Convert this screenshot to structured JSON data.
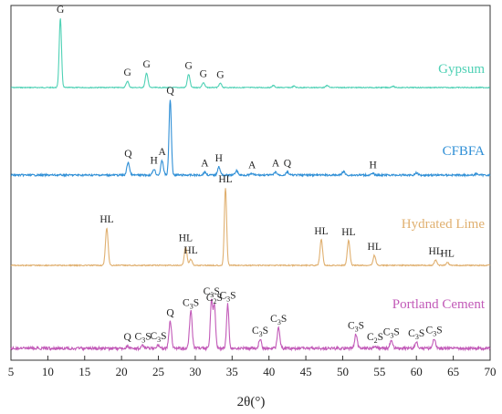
{
  "chart_data": {
    "type": "line",
    "title": "",
    "xlabel": "2θ(°)",
    "ylabel": "",
    "xlim": [
      5,
      70
    ],
    "xticks": [
      5,
      10,
      15,
      20,
      25,
      30,
      35,
      40,
      45,
      50,
      55,
      60,
      65,
      70
    ],
    "y_ticks_shown": false,
    "grid": false,
    "legend": "none; series names printed at right end of each trace",
    "series": [
      {
        "name": "Gypsum",
        "color": "#4fd1b5",
        "baseline": 0,
        "peaks": [
          {
            "x": 11.7,
            "h": 100,
            "label": "G"
          },
          {
            "x": 20.8,
            "h": 9,
            "label": "G"
          },
          {
            "x": 23.4,
            "h": 21,
            "label": "G"
          },
          {
            "x": 29.1,
            "h": 19,
            "label": "G"
          },
          {
            "x": 31.1,
            "h": 7,
            "label": "G"
          },
          {
            "x": 33.4,
            "h": 6,
            "label": "G"
          },
          {
            "x": 40.6,
            "h": 3,
            "label": ""
          },
          {
            "x": 43.4,
            "h": 2,
            "label": ""
          },
          {
            "x": 47.9,
            "h": 3,
            "label": ""
          },
          {
            "x": 56.8,
            "h": 2,
            "label": ""
          }
        ]
      },
      {
        "name": "CFBFA",
        "color": "#2f8fd6",
        "baseline": 0,
        "peaks": [
          {
            "x": 20.9,
            "h": 17,
            "label": "Q"
          },
          {
            "x": 24.4,
            "h": 8,
            "label": "H"
          },
          {
            "x": 25.5,
            "h": 19,
            "label": "A"
          },
          {
            "x": 26.6,
            "h": 100,
            "label": "Q"
          },
          {
            "x": 31.3,
            "h": 4,
            "label": "A"
          },
          {
            "x": 33.2,
            "h": 11,
            "label": "H"
          },
          {
            "x": 35.6,
            "h": 6,
            "label": ""
          },
          {
            "x": 37.7,
            "h": 2,
            "label": "A"
          },
          {
            "x": 40.9,
            "h": 4,
            "label": "A"
          },
          {
            "x": 42.5,
            "h": 4,
            "label": "Q"
          },
          {
            "x": 50.1,
            "h": 5,
            "label": ""
          },
          {
            "x": 54.1,
            "h": 2,
            "label": "H"
          },
          {
            "x": 60.0,
            "h": 3,
            "label": ""
          },
          {
            "x": 68.2,
            "h": 2,
            "label": ""
          }
        ]
      },
      {
        "name": "Hydrated Lime",
        "color": "#e0b070",
        "baseline": 0,
        "peaks": [
          {
            "x": 18.0,
            "h": 48,
            "label": "HL"
          },
          {
            "x": 28.7,
            "h": 24,
            "label": "HL"
          },
          {
            "x": 29.4,
            "h": 8,
            "label": "HL"
          },
          {
            "x": 34.1,
            "h": 100,
            "label": "HL"
          },
          {
            "x": 47.1,
            "h": 33,
            "label": "HL"
          },
          {
            "x": 50.8,
            "h": 32,
            "label": "HL"
          },
          {
            "x": 54.3,
            "h": 13,
            "label": "HL"
          },
          {
            "x": 62.6,
            "h": 7,
            "label": "HL"
          },
          {
            "x": 64.2,
            "h": 4,
            "label": "HL"
          }
        ]
      },
      {
        "name": "Portland Cement",
        "color": "#c25ab8",
        "baseline": 0,
        "peaks": [
          {
            "x": 20.8,
            "h": 4,
            "label": "Q"
          },
          {
            "x": 22.9,
            "h": 5,
            "label": "C3S"
          },
          {
            "x": 25.0,
            "h": 6,
            "label": "C3S"
          },
          {
            "x": 26.6,
            "h": 42,
            "label": "Q"
          },
          {
            "x": 29.4,
            "h": 58,
            "label": "C3S"
          },
          {
            "x": 32.2,
            "h": 76,
            "label": "C3S"
          },
          {
            "x": 32.6,
            "h": 66,
            "label": "C2S"
          },
          {
            "x": 34.4,
            "h": 69,
            "label": "C3S"
          },
          {
            "x": 38.8,
            "h": 14,
            "label": "C3S"
          },
          {
            "x": 41.3,
            "h": 33,
            "label": "C3S"
          },
          {
            "x": 51.8,
            "h": 22,
            "label": "C3S"
          },
          {
            "x": 54.4,
            "h": 4,
            "label": "C2S"
          },
          {
            "x": 56.6,
            "h": 12,
            "label": "C3S"
          },
          {
            "x": 60.0,
            "h": 10,
            "label": "C3S"
          },
          {
            "x": 62.4,
            "h": 15,
            "label": "C3S"
          }
        ]
      }
    ]
  }
}
